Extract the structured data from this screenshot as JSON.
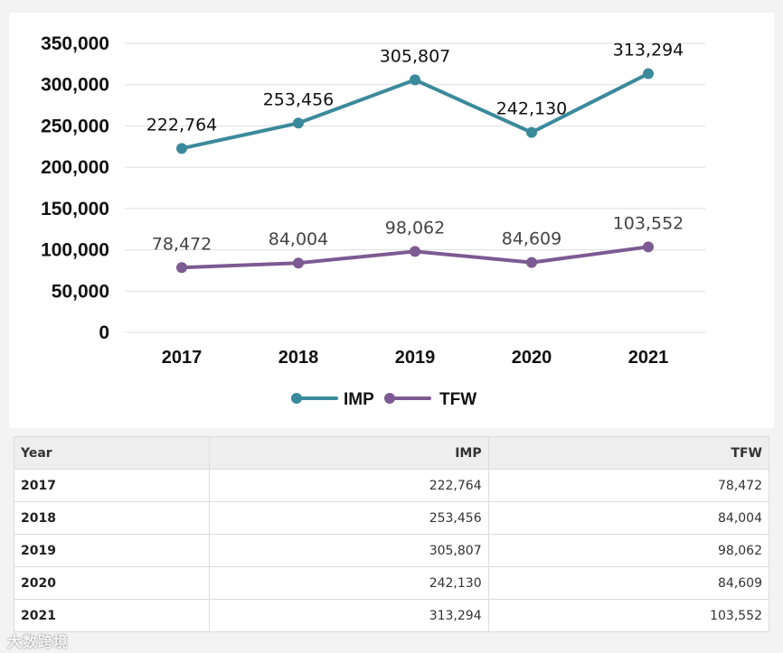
{
  "chart_data": {
    "type": "line",
    "categories": [
      "2017",
      "2018",
      "2019",
      "2020",
      "2021"
    ],
    "series": [
      {
        "name": "IMP",
        "color": "#3a8a9b",
        "values": [
          222764,
          253456,
          305807,
          242130,
          313294
        ],
        "labels": [
          "222,764",
          "253,456",
          "305,807",
          "242,130",
          "313,294"
        ]
      },
      {
        "name": "TFW",
        "color": "#7c5a92",
        "values": [
          78472,
          84004,
          98062,
          84609,
          103552
        ],
        "labels": [
          "78,472",
          "84,004",
          "98,062",
          "84,609",
          "103,552"
        ]
      }
    ],
    "ylim": [
      0,
      350000
    ],
    "yticks": [
      0,
      50000,
      100000,
      150000,
      200000,
      250000,
      300000,
      350000
    ],
    "ytick_labels": [
      "0",
      "50,000",
      "100,000",
      "150,000",
      "200,000",
      "250,000",
      "300,000",
      "350,000"
    ],
    "grid": true,
    "legend": "bottom-center",
    "title": "",
    "xlabel": "",
    "ylabel": ""
  },
  "table": {
    "headers": [
      "Year",
      "IMP",
      "TFW"
    ],
    "rows": [
      [
        "2017",
        "222,764",
        "78,472"
      ],
      [
        "2018",
        "253,456",
        "84,004"
      ],
      [
        "2019",
        "305,807",
        "98,062"
      ],
      [
        "2020",
        "242,130",
        "84,609"
      ],
      [
        "2021",
        "313,294",
        "103,552"
      ]
    ]
  },
  "watermark": "大数跨境"
}
